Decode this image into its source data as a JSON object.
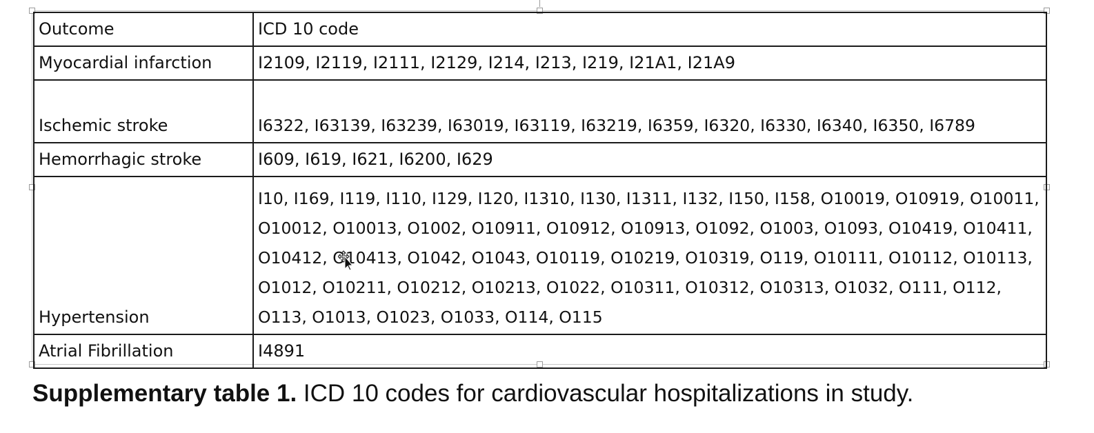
{
  "table": {
    "header": {
      "outcome": "Outcome",
      "code": "ICD 10 code"
    },
    "rows": [
      {
        "outcome": "Myocardial infarction",
        "codes": "I2109, I2119, I2111, I2129, I214, I213, I219, I21A1, I21A9"
      },
      {
        "outcome": "Ischemic stroke",
        "codes": "I6322, I63139, I63239, I63019, I63119, I63219, I6359, I6320, I6330, I6340, I6350, I6789"
      },
      {
        "outcome": "Hemorrhagic stroke",
        "codes": "I609, I619, I621, I6200, I629"
      },
      {
        "outcome": "Hypertension",
        "codes": "I10, I169, I119, I110, I129, I120, I1310, I130, I1311, I132, I150, I158, O10019, O10919, O10011, O10012, O10013, O1002, O10911, O10912, O10913, O1092, O1003, O1093, O10419, O10411, O10412, O10413, O1042, O1043, O10119, O10219, O10319, O119, O10111, O10112, O10113, O1012, O10211, O10212, O10213, O1022, O10311, O10312, O10313, O1032, O111, O112, O113, O1013, O1023, O1033, O114, O115"
      },
      {
        "outcome": "Atrial Fibrillation",
        "codes": "I4891"
      }
    ]
  },
  "caption": {
    "label": "Supplementary table 1.",
    "text": " ICD 10 codes for cardiovascular hospitalizations in study."
  }
}
